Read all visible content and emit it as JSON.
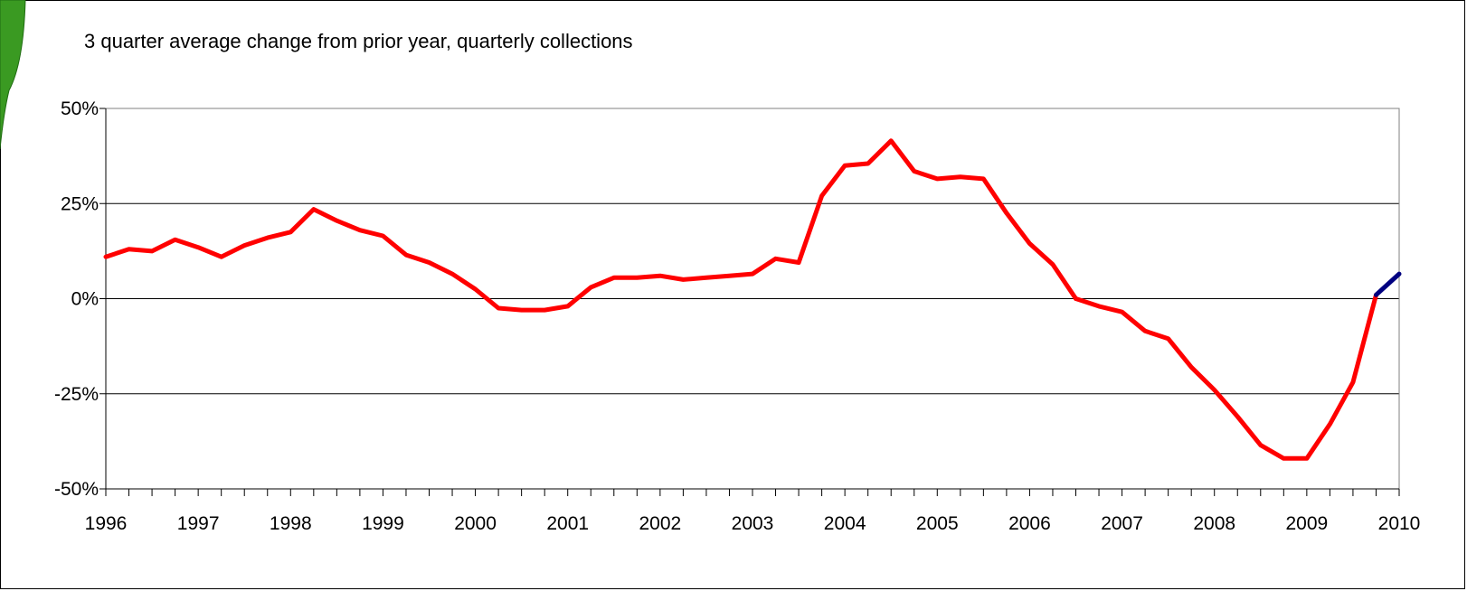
{
  "chart_data": {
    "type": "line",
    "title": "3 quarter average change from prior year, quarterly collections",
    "xlabel": "",
    "ylabel": "",
    "x_tick_labels": [
      "1996",
      "1997",
      "1998",
      "1999",
      "2000",
      "2001",
      "2002",
      "2003",
      "2004",
      "2005",
      "2006",
      "2007",
      "2008",
      "2009",
      "2010"
    ],
    "y_tick_labels": [
      "50%",
      "25%",
      "0%",
      "-25%",
      "-50%"
    ],
    "y_ticks": [
      50,
      25,
      0,
      -25,
      -50
    ],
    "ylim": [
      -50,
      50
    ],
    "xlim": [
      1996,
      2010
    ],
    "grid": "horizontal",
    "legend": "none",
    "colors": {
      "positive_series": "#000080",
      "negative_series": "#ff0000",
      "grid": "#000000",
      "accent_tab": "#3a9a22"
    },
    "series": [
      {
        "values": [
          [
            1996.0,
            11
          ],
          [
            1996.25,
            13
          ],
          [
            1996.5,
            12.5
          ],
          [
            1996.75,
            15.5
          ],
          [
            1997.0,
            13.5
          ],
          [
            1997.25,
            11
          ],
          [
            1997.5,
            14
          ],
          [
            1997.75,
            16
          ],
          [
            1998.0,
            17.5
          ],
          [
            1998.25,
            23.5
          ],
          [
            1998.5,
            20.5
          ],
          [
            1998.75,
            18
          ],
          [
            1999.0,
            16.5
          ],
          [
            1999.25,
            11.5
          ],
          [
            1999.5,
            9.5
          ],
          [
            1999.75,
            6.5
          ],
          [
            2000.0,
            2.5
          ],
          [
            2000.25,
            -2.5
          ],
          [
            2000.5,
            -3
          ],
          [
            2000.75,
            -3
          ],
          [
            2001.0,
            -2
          ],
          [
            2001.25,
            3
          ],
          [
            2001.5,
            5.5
          ],
          [
            2001.75,
            5.5
          ],
          [
            2002.0,
            6
          ],
          [
            2002.25,
            5
          ],
          [
            2002.5,
            5.5
          ],
          [
            2002.75,
            6
          ],
          [
            2003.0,
            6.5
          ],
          [
            2003.25,
            10.5
          ],
          [
            2003.5,
            9.5
          ],
          [
            2003.75,
            27
          ],
          [
            2004.0,
            35
          ],
          [
            2004.25,
            35.5
          ],
          [
            2004.5,
            41.5
          ],
          [
            2004.75,
            33.5
          ],
          [
            2005.0,
            31.5
          ],
          [
            2005.25,
            32
          ],
          [
            2005.5,
            31.5
          ],
          [
            2005.75,
            22.5
          ],
          [
            2006.0,
            14.5
          ],
          [
            2006.25,
            9
          ],
          [
            2006.5,
            0
          ]
        ]
      },
      {
        "values": [
          [
            2006.5,
            0
          ],
          [
            2006.75,
            -2
          ],
          [
            2007.0,
            -3.5
          ],
          [
            2007.25,
            -8.5
          ],
          [
            2007.5,
            -10.5
          ],
          [
            2007.75,
            -18
          ],
          [
            2008.0,
            -24
          ],
          [
            2008.25,
            -31
          ],
          [
            2008.5,
            -38.5
          ],
          [
            2008.75,
            -42
          ],
          [
            2009.0,
            -42
          ],
          [
            2009.25,
            -33
          ],
          [
            2009.5,
            -22
          ],
          [
            2009.75,
            1
          ]
        ]
      },
      {
        "values": [
          [
            2009.75,
            1
          ],
          [
            2010.0,
            6.5
          ]
        ]
      }
    ]
  }
}
